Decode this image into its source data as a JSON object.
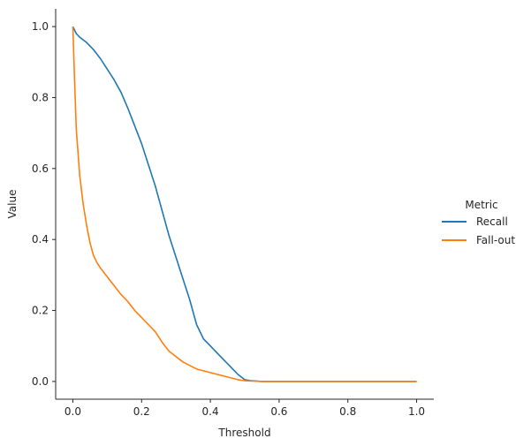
{
  "chart_data": {
    "type": "line",
    "title": "",
    "xlabel": "Threshold",
    "ylabel": "Value",
    "xlim": [
      -0.05,
      1.05
    ],
    "ylim": [
      -0.05,
      1.05
    ],
    "xticks": [
      0.0,
      0.2,
      0.4,
      0.6,
      0.8,
      1.0
    ],
    "xtick_labels": [
      "0.0",
      "0.2",
      "0.4",
      "0.6",
      "0.8",
      "1.0"
    ],
    "yticks": [
      0.0,
      0.2,
      0.4,
      0.6,
      0.8,
      1.0
    ],
    "ytick_labels": [
      "0.0",
      "0.2",
      "0.4",
      "0.6",
      "0.8",
      "1.0"
    ],
    "grid": false,
    "legend": {
      "title": "Metric",
      "placement": "right, outside plot"
    },
    "series": [
      {
        "name": "Recall",
        "color": "#1f77b4",
        "x": [
          0.0,
          0.01,
          0.02,
          0.04,
          0.06,
          0.08,
          0.1,
          0.12,
          0.14,
          0.16,
          0.18,
          0.2,
          0.22,
          0.24,
          0.26,
          0.28,
          0.3,
          0.32,
          0.34,
          0.36,
          0.38,
          0.4,
          0.42,
          0.44,
          0.46,
          0.48,
          0.5,
          0.52,
          0.55,
          0.6,
          0.7,
          0.8,
          0.9,
          1.0
        ],
        "y": [
          1.0,
          0.98,
          0.97,
          0.955,
          0.935,
          0.91,
          0.88,
          0.85,
          0.815,
          0.77,
          0.72,
          0.67,
          0.61,
          0.55,
          0.48,
          0.41,
          0.35,
          0.29,
          0.23,
          0.16,
          0.12,
          0.1,
          0.08,
          0.06,
          0.04,
          0.02,
          0.005,
          0.002,
          0.0,
          0.0,
          0.0,
          0.0,
          0.0,
          0.0
        ]
      },
      {
        "name": "Fall-out",
        "color": "#ff7f0e",
        "x": [
          0.0,
          0.005,
          0.01,
          0.02,
          0.03,
          0.04,
          0.05,
          0.06,
          0.07,
          0.08,
          0.1,
          0.12,
          0.14,
          0.16,
          0.18,
          0.2,
          0.22,
          0.24,
          0.26,
          0.28,
          0.3,
          0.32,
          0.34,
          0.36,
          0.38,
          0.4,
          0.42,
          0.44,
          0.46,
          0.48,
          0.5,
          0.55,
          0.6,
          0.7,
          0.8,
          0.9,
          1.0
        ],
        "y": [
          1.0,
          0.85,
          0.71,
          0.58,
          0.5,
          0.44,
          0.39,
          0.355,
          0.335,
          0.32,
          0.295,
          0.27,
          0.245,
          0.225,
          0.2,
          0.18,
          0.16,
          0.14,
          0.11,
          0.085,
          0.07,
          0.055,
          0.045,
          0.035,
          0.03,
          0.025,
          0.02,
          0.015,
          0.01,
          0.005,
          0.002,
          0.0,
          0.0,
          0.0,
          0.0,
          0.0,
          0.0
        ]
      }
    ]
  }
}
